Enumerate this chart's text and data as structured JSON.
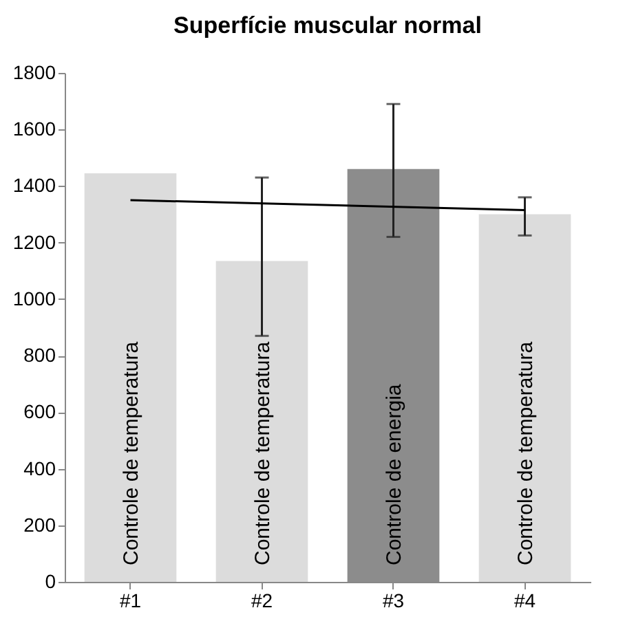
{
  "chart_data": {
    "type": "bar",
    "title": "Superfície muscular normal",
    "categories": [
      "#1",
      "#2",
      "#3",
      "#4"
    ],
    "series": [
      {
        "colors": [
          "#dcdcdc",
          "#dcdcdc",
          "#8c8c8c",
          "#dcdcdc"
        ],
        "values": [
          1445,
          1135,
          1460,
          1300
        ],
        "errors": [
          null,
          [
            870,
            1430
          ],
          [
            1220,
            1690
          ],
          [
            1225,
            1360
          ]
        ]
      },
      {
        "type": "line",
        "color": "#000000",
        "x": [
          "#1",
          "#4"
        ],
        "values": [
          1350,
          1315
        ]
      }
    ],
    "ylim": [
      0,
      1800
    ],
    "yticks": [
      0,
      200,
      400,
      600,
      800,
      1000,
      1200,
      1400,
      1600,
      1800
    ],
    "annotations": [
      {
        "text": "Controle de temperatura",
        "x": "#1",
        "y": 0
      },
      {
        "text": "Controle de temperatura",
        "x": "#2",
        "y": 0
      },
      {
        "text": "Controle de energia",
        "x": "#3",
        "y": 0
      },
      {
        "text": "Controle de temperatura",
        "x": "#4",
        "y": 0
      }
    ]
  }
}
